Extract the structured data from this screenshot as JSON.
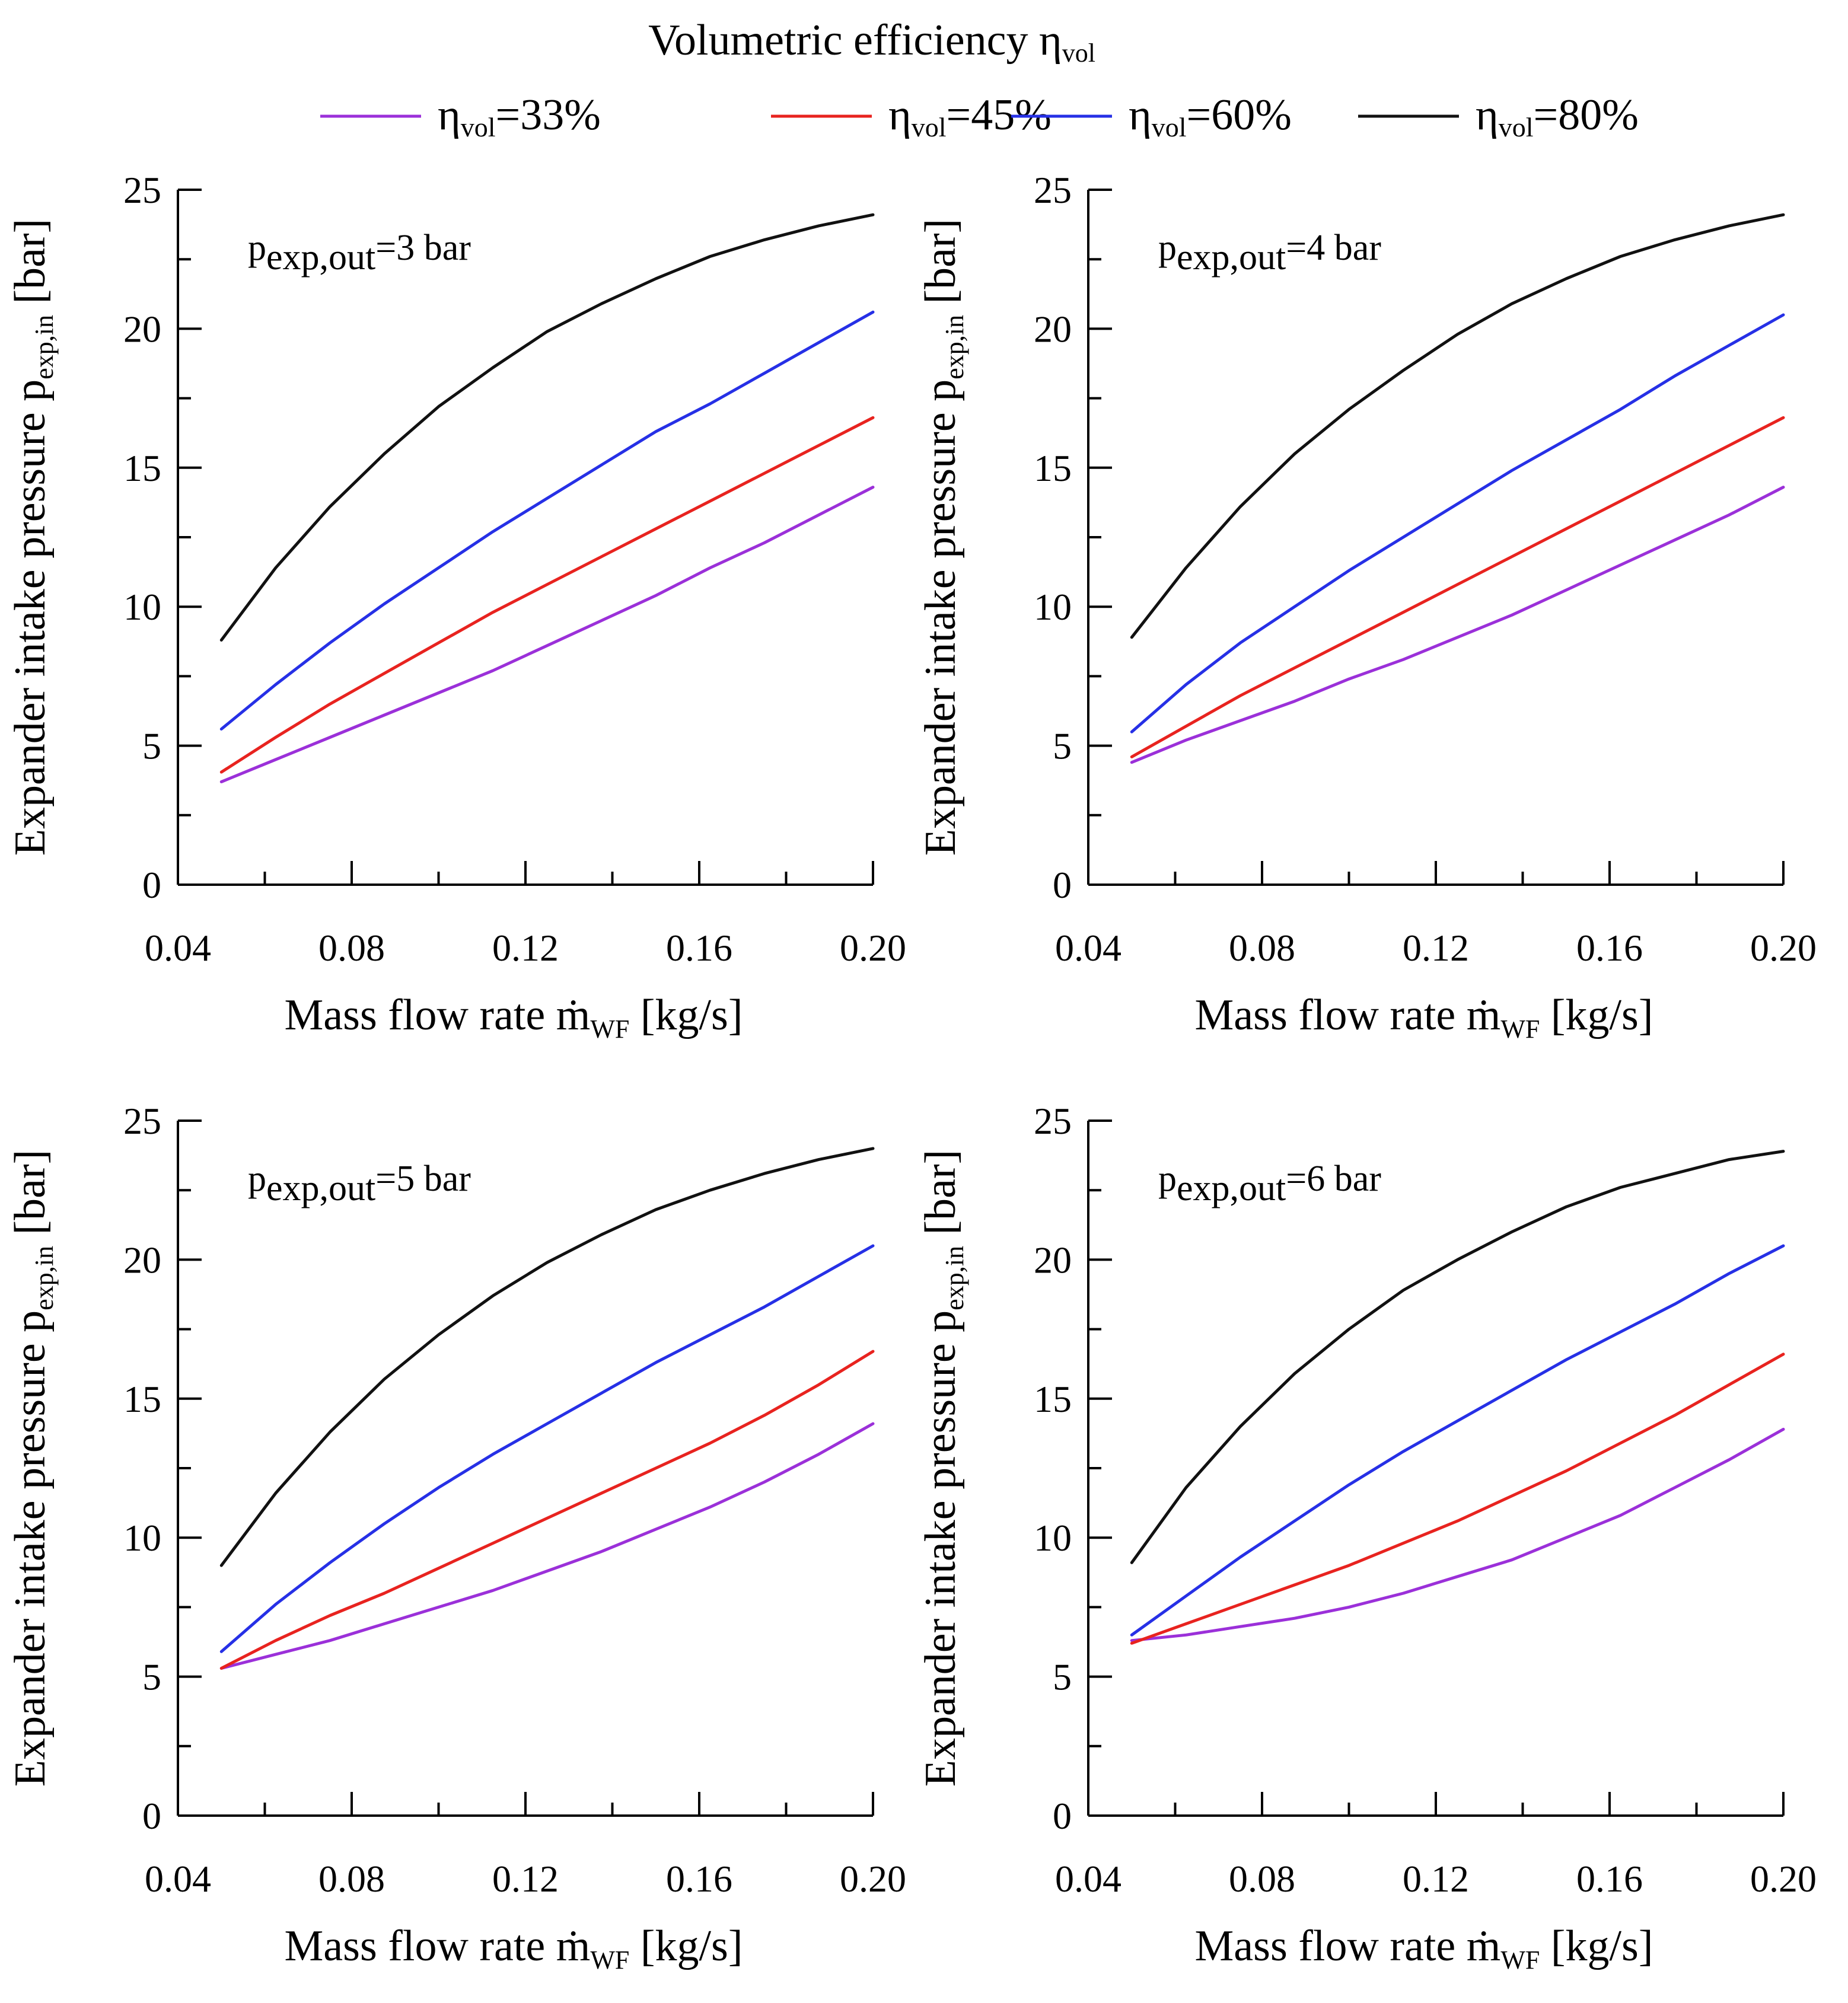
{
  "chart_data": {
    "type": "line",
    "title": "Volumetric efficiency η",
    "title_sub": "vol",
    "legend_placement": "top-center",
    "colors": {
      "eta33": "#9b30d9",
      "eta45": "#e8231f",
      "eta60": "#2630e6",
      "eta80": "#111111"
    },
    "legend": [
      {
        "key": "eta33",
        "prefix": "η",
        "sub": "vol",
        "suffix": "=33%"
      },
      {
        "key": "eta45",
        "prefix": "η",
        "sub": "vol",
        "suffix": "=45%"
      },
      {
        "key": "eta60",
        "prefix": "η",
        "sub": "vol",
        "suffix": "=60%"
      },
      {
        "key": "eta80",
        "prefix": "η",
        "sub": "vol",
        "suffix": "=80%"
      }
    ],
    "xlabel": {
      "main": "Mass flow rate ṁ",
      "sub": "WF",
      "unit": " [kg/s]"
    },
    "ylabel": {
      "main": "Expander intake pressure p",
      "sub": "exp,in",
      "unit": " [bar]"
    },
    "xlim": [
      0.04,
      0.2
    ],
    "ylim": [
      0,
      25
    ],
    "xticks": [
      "0.04",
      "0.08",
      "0.12",
      "0.16",
      "0.20"
    ],
    "yticks": [
      "0",
      "5",
      "10",
      "15",
      "20",
      "25"
    ],
    "x": [
      0.05,
      0.0625,
      0.075,
      0.0875,
      0.1,
      0.1125,
      0.125,
      0.1375,
      0.15,
      0.1625,
      0.175,
      0.1875,
      0.2
    ],
    "panels": [
      {
        "annotation": {
          "main": "p",
          "sub": "exp,out",
          "value": "=3 bar"
        },
        "series": [
          {
            "key": "eta33",
            "name": "η vol=33%",
            "values": [
              3.7,
              4.5,
              5.3,
              6.1,
              6.9,
              7.7,
              8.6,
              9.5,
              10.4,
              11.4,
              12.3,
              13.3,
              14.3
            ]
          },
          {
            "key": "eta45",
            "name": "η vol=45%",
            "values": [
              4.05,
              5.3,
              6.5,
              7.6,
              8.7,
              9.8,
              10.8,
              11.8,
              12.8,
              13.8,
              14.8,
              15.8,
              16.8
            ]
          },
          {
            "key": "eta60",
            "name": "η vol=60%",
            "values": [
              5.6,
              7.2,
              8.7,
              10.1,
              11.4,
              12.7,
              13.9,
              15.1,
              16.3,
              17.3,
              18.4,
              19.5,
              20.6
            ]
          },
          {
            "key": "eta80",
            "name": "η vol=80%",
            "values": [
              8.8,
              11.4,
              13.6,
              15.5,
              17.2,
              18.6,
              19.9,
              20.9,
              21.8,
              22.6,
              23.2,
              23.7,
              24.1
            ]
          }
        ]
      },
      {
        "annotation": {
          "main": "p",
          "sub": "exp,out",
          "value": "=4 bar"
        },
        "series": [
          {
            "key": "eta33",
            "name": "η vol=33%",
            "values": [
              4.4,
              5.2,
              5.9,
              6.6,
              7.4,
              8.1,
              8.9,
              9.7,
              10.6,
              11.5,
              12.4,
              13.3,
              14.3
            ]
          },
          {
            "key": "eta45",
            "name": "η vol=45%",
            "values": [
              4.6,
              5.7,
              6.8,
              7.8,
              8.8,
              9.8,
              10.8,
              11.8,
              12.8,
              13.8,
              14.8,
              15.8,
              16.8
            ]
          },
          {
            "key": "eta60",
            "name": "η vol=60%",
            "values": [
              5.5,
              7.2,
              8.7,
              10.0,
              11.3,
              12.5,
              13.7,
              14.9,
              16.0,
              17.1,
              18.3,
              19.4,
              20.5
            ]
          },
          {
            "key": "eta80",
            "name": "η vol=80%",
            "values": [
              8.9,
              11.4,
              13.6,
              15.5,
              17.1,
              18.5,
              19.8,
              20.9,
              21.8,
              22.6,
              23.2,
              23.7,
              24.1
            ]
          }
        ]
      },
      {
        "annotation": {
          "main": "p",
          "sub": "exp,out",
          "value": "=5 bar"
        },
        "series": [
          {
            "key": "eta33",
            "name": "η vol=33%",
            "values": [
              5.3,
              5.8,
              6.3,
              6.9,
              7.5,
              8.1,
              8.8,
              9.5,
              10.3,
              11.1,
              12.0,
              13.0,
              14.1
            ]
          },
          {
            "key": "eta45",
            "name": "η vol=45%",
            "values": [
              5.3,
              6.3,
              7.2,
              8.0,
              8.9,
              9.8,
              10.7,
              11.6,
              12.5,
              13.4,
              14.4,
              15.5,
              16.7
            ]
          },
          {
            "key": "eta60",
            "name": "η vol=60%",
            "values": [
              5.9,
              7.6,
              9.1,
              10.5,
              11.8,
              13.0,
              14.1,
              15.2,
              16.3,
              17.3,
              18.3,
              19.4,
              20.5
            ]
          },
          {
            "key": "eta80",
            "name": "η vol=80%",
            "values": [
              9.0,
              11.6,
              13.8,
              15.7,
              17.3,
              18.7,
              19.9,
              20.9,
              21.8,
              22.5,
              23.1,
              23.6,
              24.0
            ]
          }
        ]
      },
      {
        "annotation": {
          "main": "p",
          "sub": "exp,out",
          "value": "=6 bar"
        },
        "series": [
          {
            "key": "eta33",
            "name": "η vol=33%",
            "values": [
              6.3,
              6.5,
              6.8,
              7.1,
              7.5,
              8.0,
              8.6,
              9.2,
              10.0,
              10.8,
              11.8,
              12.8,
              13.9
            ]
          },
          {
            "key": "eta45",
            "name": "η vol=45%",
            "values": [
              6.2,
              6.9,
              7.6,
              8.3,
              9.0,
              9.8,
              10.6,
              11.5,
              12.4,
              13.4,
              14.4,
              15.5,
              16.6
            ]
          },
          {
            "key": "eta60",
            "name": "η vol=60%",
            "values": [
              6.5,
              7.9,
              9.3,
              10.6,
              11.9,
              13.1,
              14.2,
              15.3,
              16.4,
              17.4,
              18.4,
              19.5,
              20.5
            ]
          },
          {
            "key": "eta80",
            "name": "η vol=80%",
            "values": [
              9.1,
              11.8,
              14.0,
              15.9,
              17.5,
              18.9,
              20.0,
              21.0,
              21.9,
              22.6,
              23.1,
              23.6,
              23.9
            ]
          }
        ]
      }
    ]
  }
}
